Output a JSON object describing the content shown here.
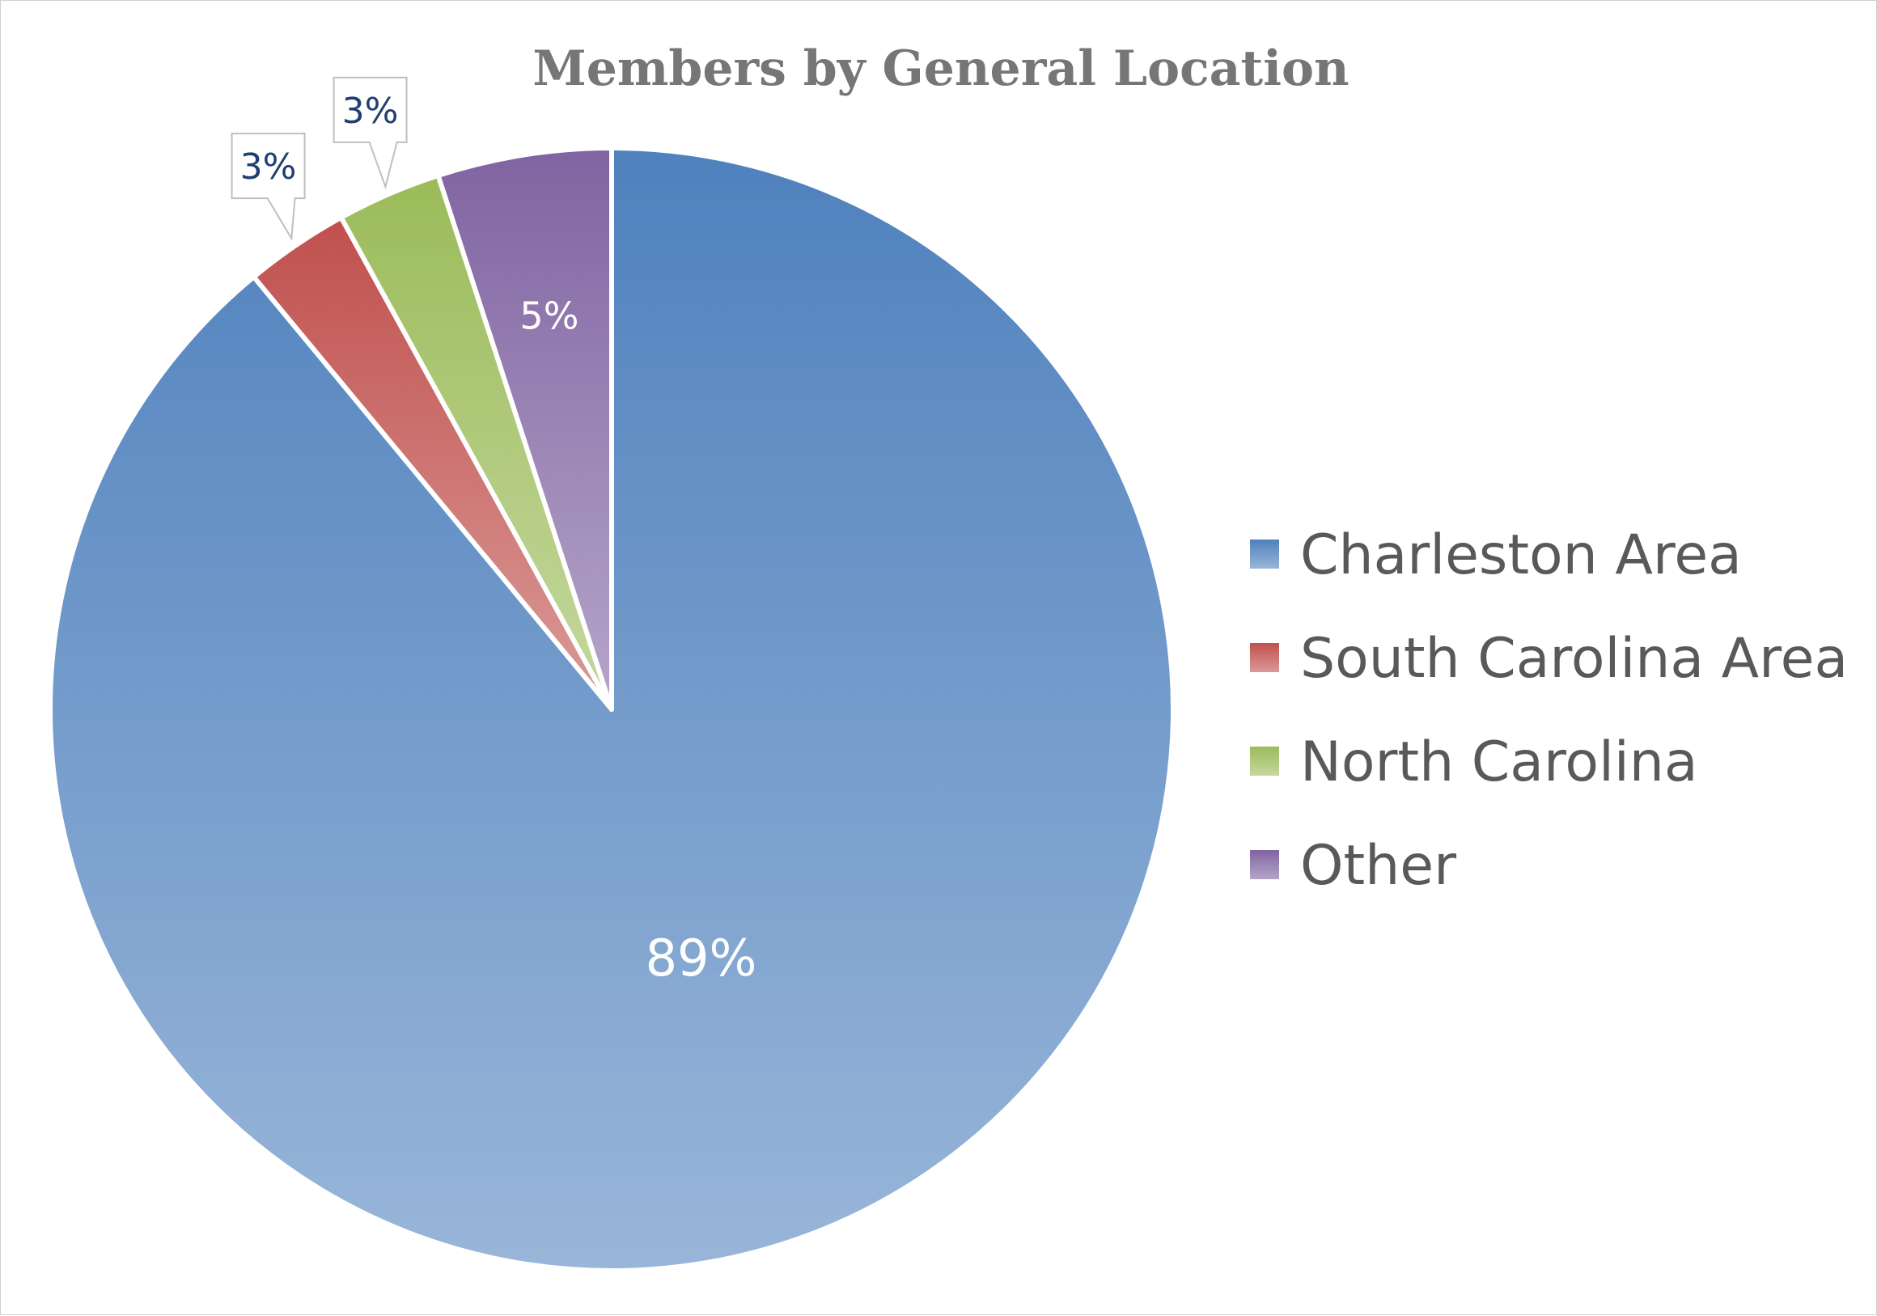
{
  "chart_data": {
    "type": "pie",
    "title": "Members by General Location",
    "categories": [
      "Charleston Area",
      "South Carolina Area",
      "North Carolina",
      "Other"
    ],
    "values": [
      89,
      3,
      3,
      5
    ],
    "labels": [
      "89%",
      "3%",
      "3%",
      "5%"
    ],
    "colors": [
      "#4f81bd",
      "#c0504d",
      "#9bbb59",
      "#8064a2"
    ],
    "legend_position": "right",
    "start_angle_deg": 0,
    "direction": "clockwise"
  }
}
